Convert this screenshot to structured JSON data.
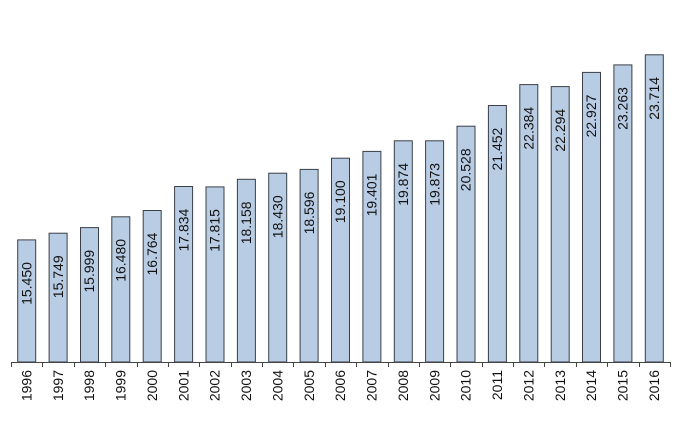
{
  "chart_data": {
    "type": "bar",
    "title": "",
    "xlabel": "",
    "ylabel": "",
    "categories": [
      "1996",
      "1997",
      "1998",
      "1999",
      "2000",
      "2001",
      "2002",
      "2003",
      "2004",
      "2005",
      "2006",
      "2007",
      "2008",
      "2009",
      "2010",
      "2011",
      "2012",
      "2013",
      "2014",
      "2015",
      "2016"
    ],
    "values": [
      15450,
      15749,
      15999,
      16480,
      16764,
      17834,
      17815,
      18158,
      18430,
      18596,
      19100,
      19401,
      19874,
      19873,
      20528,
      21452,
      22384,
      22294,
      22927,
      23263,
      23714
    ],
    "value_labels": [
      "15.450",
      "15.749",
      "15.999",
      "16.480",
      "16.764",
      "17.834",
      "17.815",
      "18.158",
      "18.430",
      "18.596",
      "19.100",
      "19.401",
      "19.874",
      "19.873",
      "20.528",
      "21.452",
      "22.384",
      "22.294",
      "22.927",
      "23.263",
      "23.714"
    ],
    "ylim": [
      10000,
      25000
    ],
    "grid": false,
    "legend": "none",
    "colors": {
      "bar_fill": "#b8cce4",
      "bar_stroke": "#3a3f48",
      "axis": "#444444",
      "text": "#111111"
    }
  }
}
